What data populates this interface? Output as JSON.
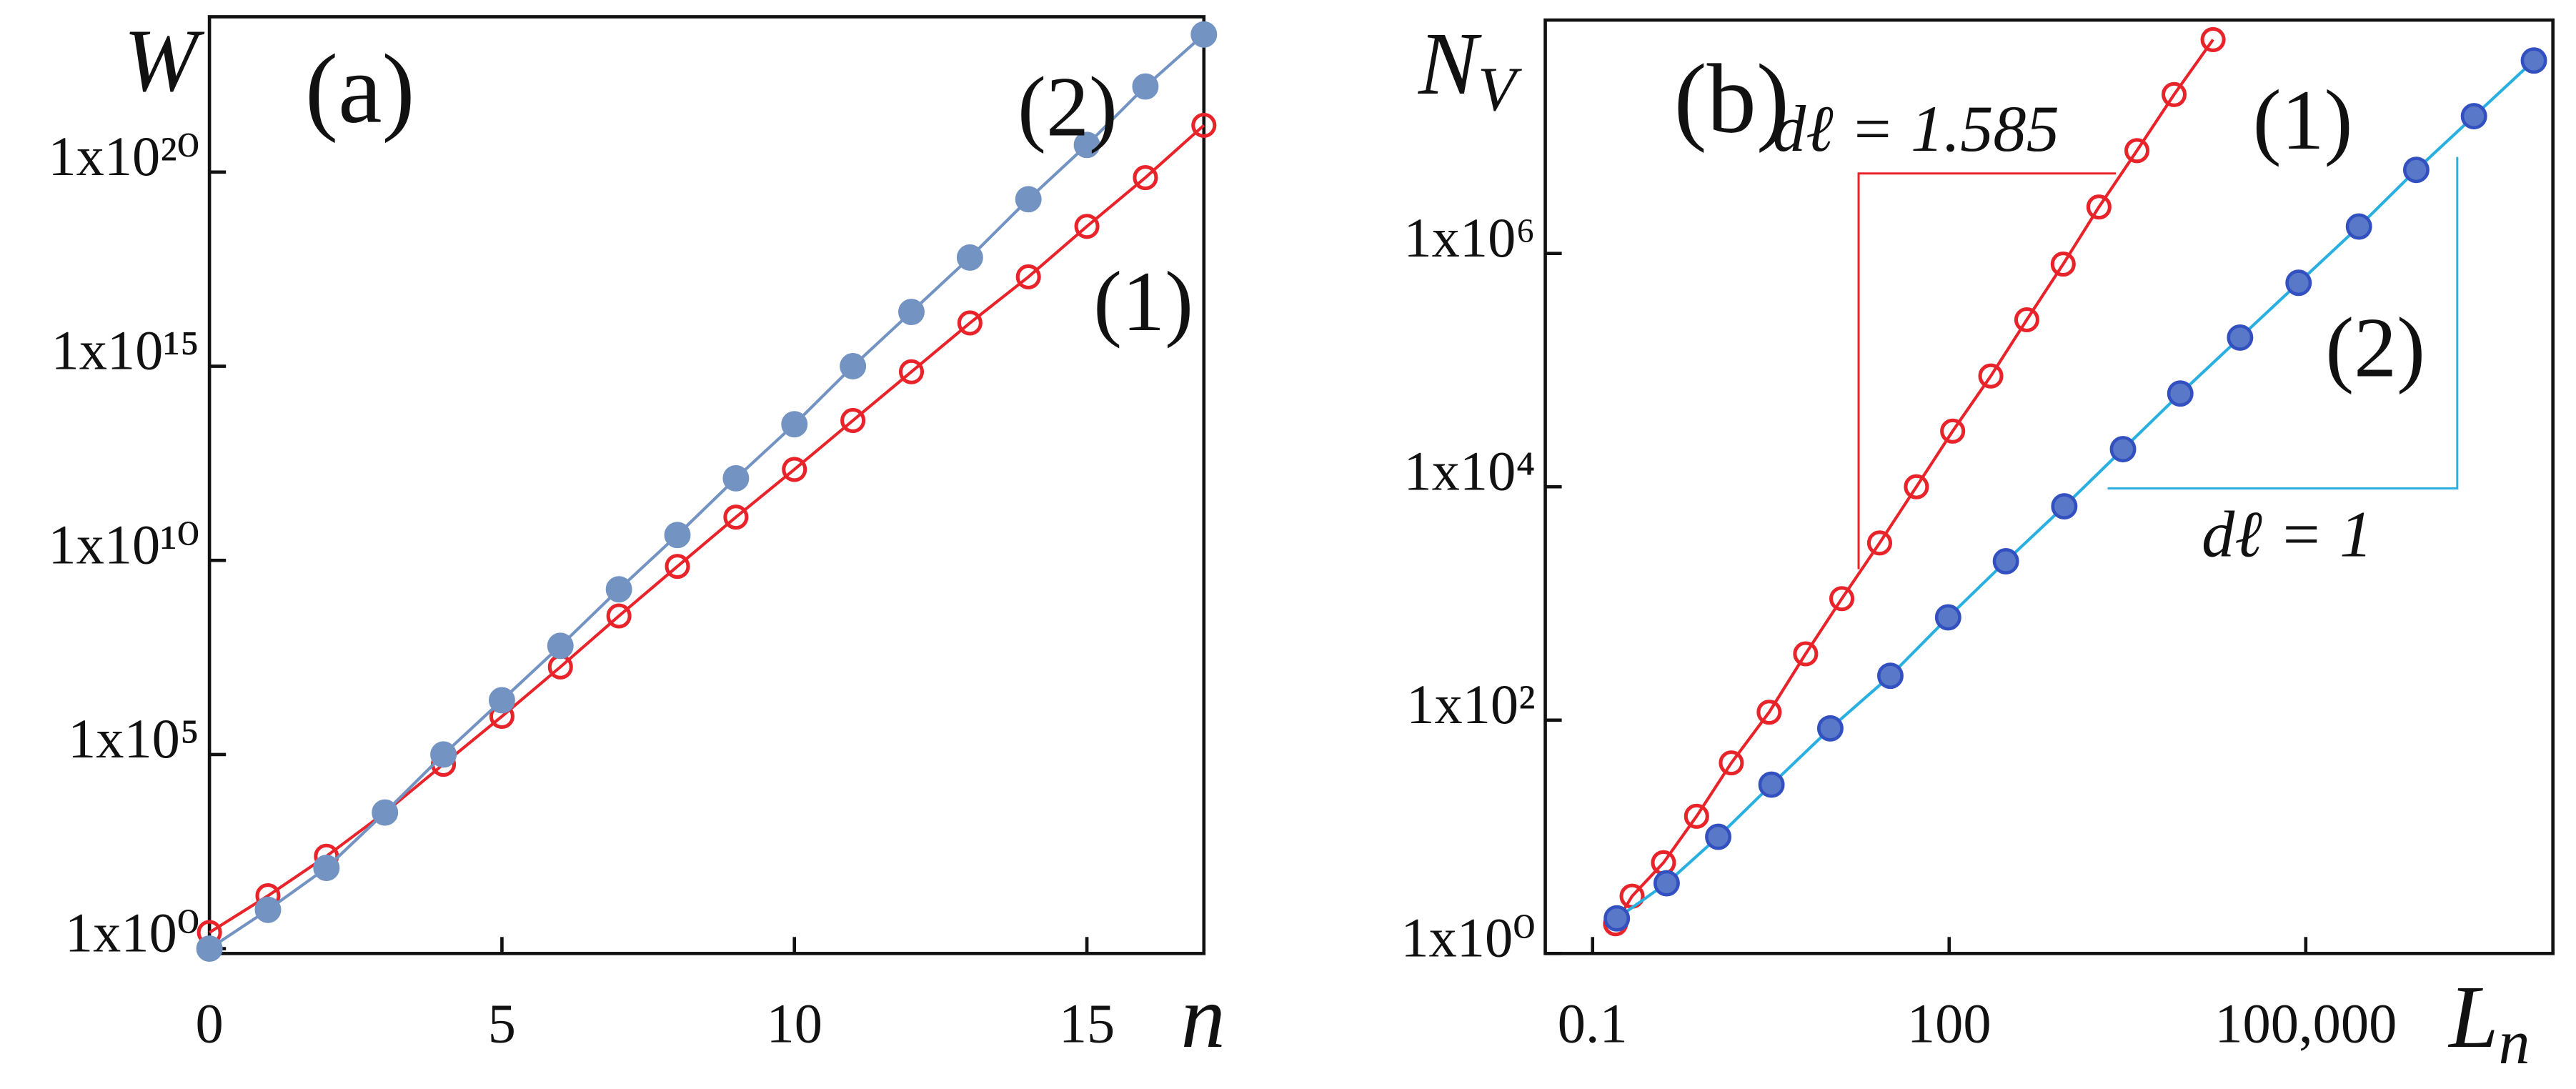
{
  "chart_data": [
    {
      "type": "line",
      "panel": "(a)",
      "xlabel": "n",
      "ylabel": "W",
      "ylog": true,
      "xlog": false,
      "x": [
        0,
        1,
        2,
        3,
        4,
        5,
        6,
        7,
        8,
        9,
        10,
        11,
        12,
        13,
        14,
        15,
        16,
        17
      ],
      "xlim": [
        0,
        17
      ],
      "xticks": [
        0,
        5,
        10,
        15
      ],
      "ylim": [
        0.75,
        1e+24
      ],
      "yticks": [
        {
          "value": 1,
          "label": "1x10⁰"
        },
        {
          "value": 100000.0,
          "label": "1x10⁵"
        },
        {
          "value": 10000000000.0,
          "label": "1x10¹⁰"
        },
        {
          "value": 1000000000000000.0,
          "label": "1x10¹⁵"
        },
        {
          "value": 1e+20,
          "label": "1x10²⁰"
        }
      ],
      "series": [
        {
          "name": "(1)",
          "color": "#e8232a",
          "marker": "open",
          "values": [
            2.6,
            23,
            240,
            3200,
            56000.0,
            960000.0,
            18000000.0,
            370000000.0,
            7000000000.0,
            130000000000.0,
            2200000000000.0,
            40000000000000.0,
            720000000000000.0,
            1.3e+16,
            2e+17,
            4e+18,
            7.2e+19,
            1.6e+21
          ]
        },
        {
          "name": "(2)",
          "color": "#7393c3",
          "marker": "filled",
          "values": [
            1,
            10,
            120,
            3200,
            100000.0,
            2500000.0,
            63000000.0,
            1800000000.0,
            45000000000.0,
            1300000000000.0,
            32000000000000.0,
            1000000000000000.0,
            2.5e+16,
            6.3e+17,
            2e+19,
            5e+20,
            1.6e+22,
            3.5e+23
          ]
        }
      ]
    },
    {
      "type": "line",
      "panel": "(b)",
      "xlabel": "L",
      "xlabel_sub": "n",
      "ylabel": "N",
      "ylabel_sub": "V",
      "ylog": true,
      "xlog": true,
      "xlim": [
        0.04,
        12000000.0
      ],
      "xticks": [
        0.1,
        100,
        {
          "value": 100000,
          "label": "100,000"
        }
      ],
      "ylim": [
        1,
        100000000.0
      ],
      "yticks": [
        {
          "value": 1,
          "label": "1x10⁰"
        },
        {
          "value": 100,
          "label": "1x10²"
        },
        {
          "value": 10000,
          "label": "1x10⁴"
        },
        {
          "value": 1000000,
          "label": "1x10⁶"
        }
      ],
      "annotations": [
        "dℓ = 1.585",
        "dℓ = 1"
      ],
      "series": [
        {
          "name": "(1)",
          "color": "#e8232a",
          "marker": "open",
          "line_color": "#e8232a",
          "x": [
            0.156,
            0.215,
            0.395,
            0.75,
            1.47,
            3.06,
            6.2,
            12.5,
            26,
            53,
            107,
            224,
            450,
            910,
            1820,
            3800,
            7800,
            16600
          ],
          "values": [
            1.8,
            3.1,
            6,
            15,
            43,
            117,
            370,
            1100,
            3300,
            10000.0,
            30000.0,
            89000.0,
            270000.0,
            810000.0,
            2500000.0,
            7600000.0,
            23000000.0,
            68000000.0
          ]
        },
        {
          "name": "(2)",
          "color": "#5a78c8",
          "marker": "filled",
          "line_color": "#2ab0e0",
          "x": [
            0.16,
            0.42,
            1.14,
            3.2,
            10,
            32,
            98,
            300,
            930,
            2900,
            8800,
            28000.0,
            87000.0,
            280000.0,
            850000.0,
            2600000.0,
            8300000.0
          ],
          "values": [
            2,
            4,
            10,
            28,
            85,
            240,
            760,
            2300,
            6800,
            21000.0,
            63000.0,
            190000.0,
            560000.0,
            1700000.0,
            5200000.0,
            15000000.0,
            45000000.0
          ]
        }
      ]
    }
  ]
}
